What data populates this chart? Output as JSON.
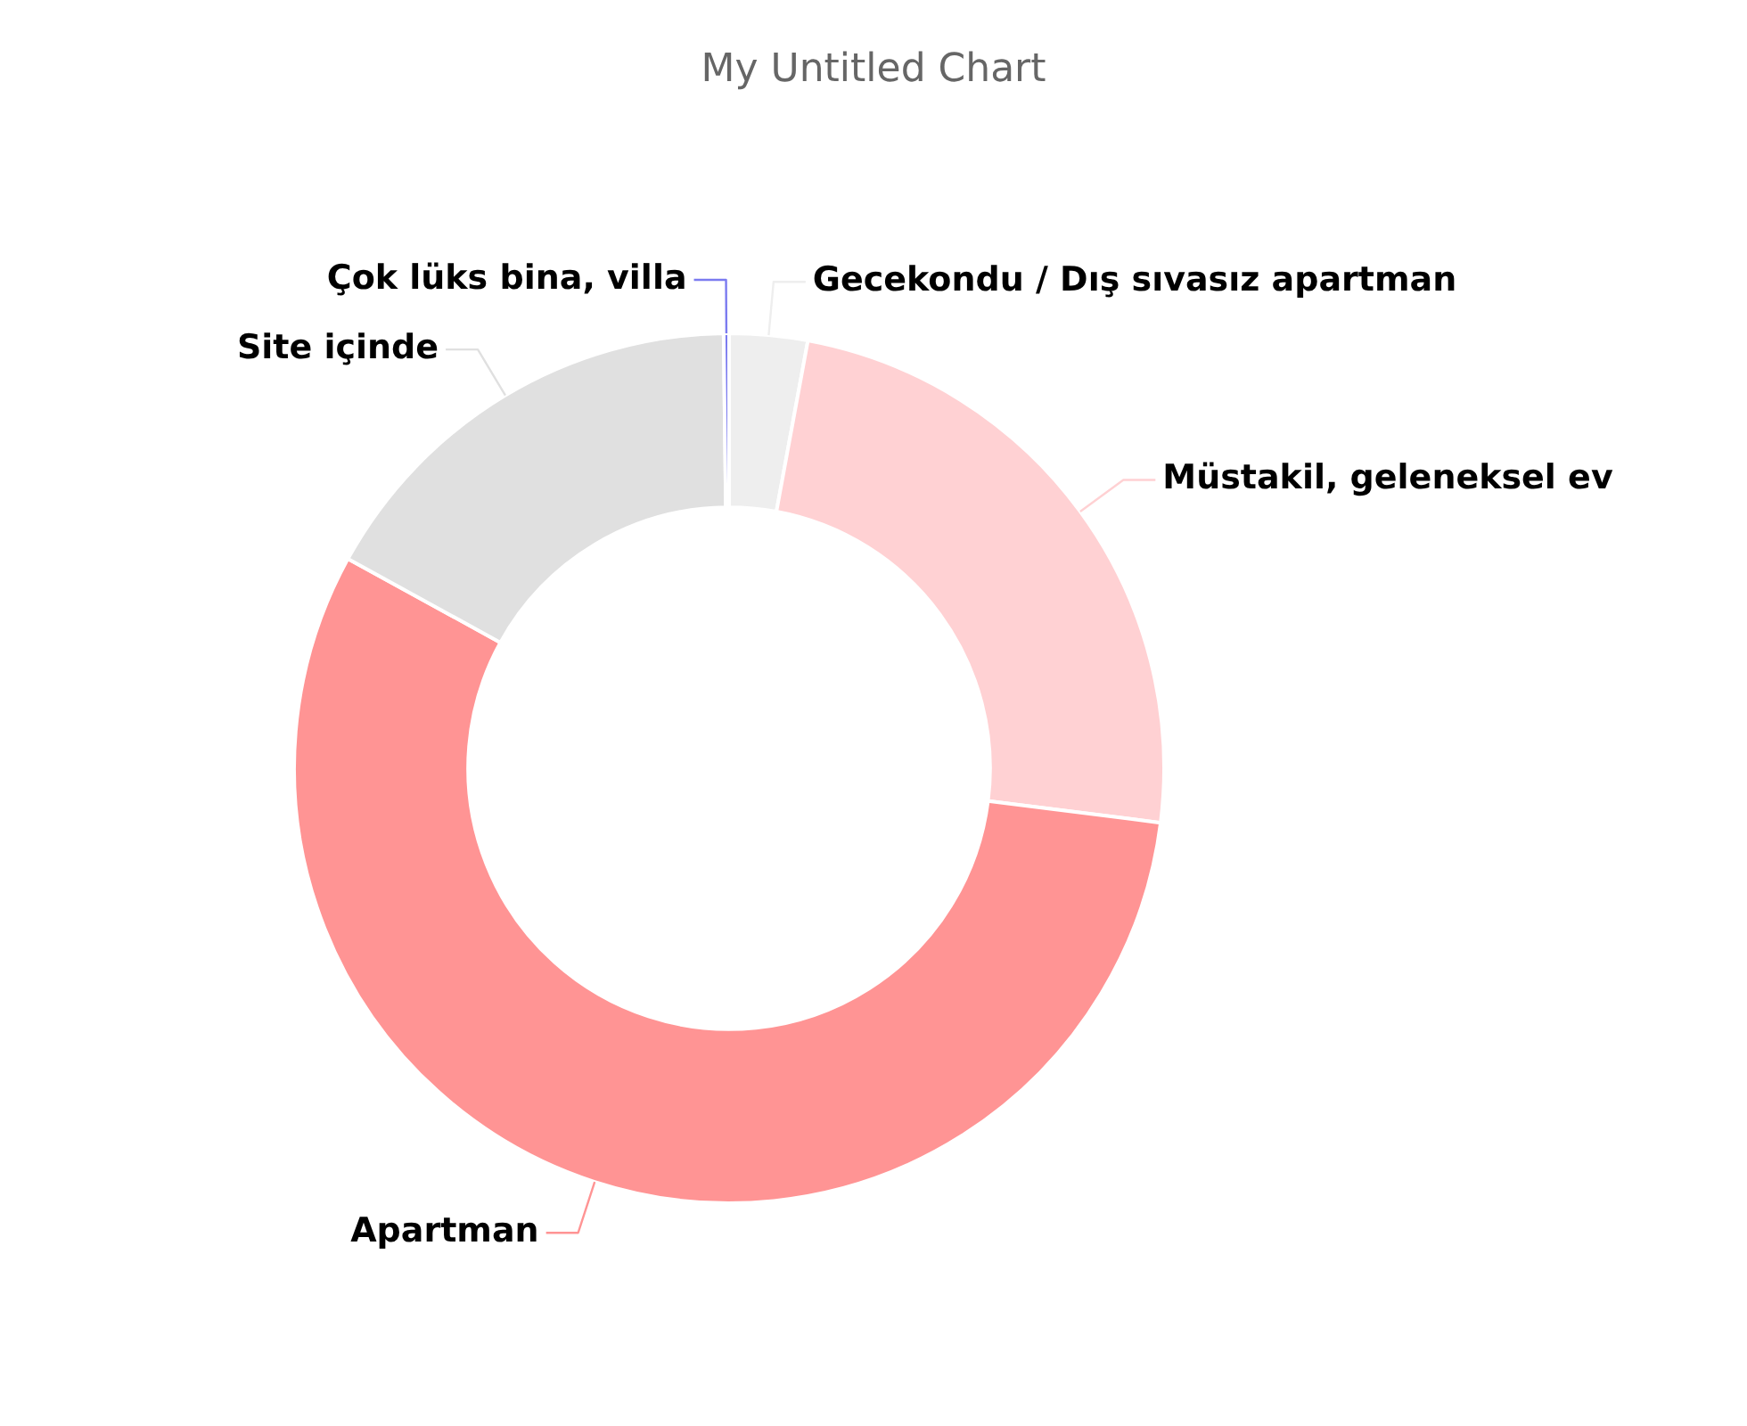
{
  "chart_data": {
    "type": "donut",
    "title": "My Untitled Chart",
    "categories": [
      "Gecekondu / Dış sıvasız apartman",
      "Müstakil, geleneksel ev",
      "Apartman",
      "Site içinde",
      "Çok lüks bina, villa"
    ],
    "values": [
      2.9,
      24.1,
      56.0,
      16.8,
      0.2
    ],
    "colors": [
      "#eeeeee",
      "#ffd1d3",
      "#ff9494",
      "#e0e0e0",
      "#7b7bf0"
    ],
    "legend": false
  }
}
